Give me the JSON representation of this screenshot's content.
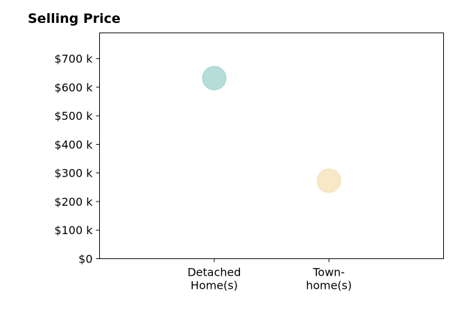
{
  "chart_data": {
    "type": "scatter",
    "title": "Selling Price",
    "xlabel": "",
    "ylabel": "",
    "categories": [
      [
        "Detached",
        "Home(s)"
      ],
      [
        "Town-",
        "home(s)"
      ]
    ],
    "values": [
      632,
      273
    ],
    "point_colors": [
      "#b5ded9",
      "#f8e9c6"
    ],
    "point_edge_colors": [
      "#9fd3cd",
      "#f2dfb2"
    ],
    "y_ticks": [
      0,
      100,
      200,
      300,
      400,
      500,
      600,
      700
    ],
    "y_tick_labels": [
      "$0",
      "$100 k",
      "$200 k",
      "$300 k",
      "$400 k",
      "$500 k",
      "$600 k",
      "$700 k"
    ],
    "ylim": [
      0,
      790
    ],
    "grid": false,
    "legend": "none"
  }
}
